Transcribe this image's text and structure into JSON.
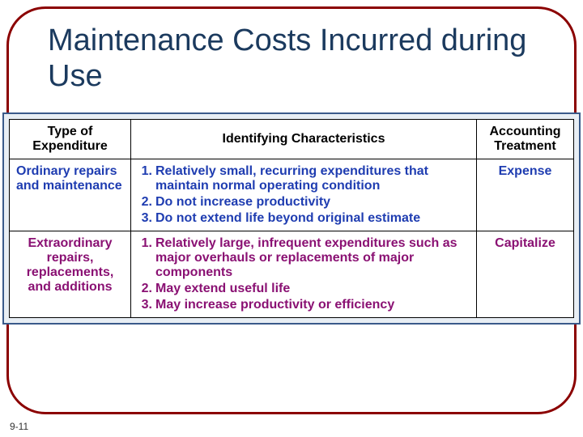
{
  "title": "Maintenance Costs Incurred during Use",
  "page_number": "9-11",
  "colors": {
    "frame_border": "#8b0000",
    "title_text": "#1b3a5e",
    "table_outer_bg": "#e8eef4",
    "table_outer_border": "#3a5a8a",
    "cell_border": "#000000",
    "row_blue": "#1f3db1",
    "row_purple": "#8a1173"
  },
  "table": {
    "headers": {
      "type": "Type of Expenditure",
      "characteristics": "Identifying Characteristics",
      "treatment": "Accounting Treatment"
    },
    "rows": [
      {
        "style": "blue",
        "type": "Ordinary repairs and maintenance",
        "characteristics": [
          {
            "n": "1.",
            "t": "Relatively small, recurring expenditures that maintain normal operating condition"
          },
          {
            "n": "2.",
            "t": "Do not increase productivity"
          },
          {
            "n": "3.",
            "t": "Do not extend life beyond original estimate"
          }
        ],
        "treatment": "Expense"
      },
      {
        "style": "purple",
        "type": "Extraordinary repairs, replacements, and additions",
        "characteristics": [
          {
            "n": "1.",
            "t": "Relatively large, infrequent expenditures such as major overhauls or replacements of major components"
          },
          {
            "n": "2.",
            "t": "May extend useful life"
          },
          {
            "n": "3.",
            "t": "May increase productivity or efficiency"
          }
        ],
        "treatment": "Capitalize"
      }
    ]
  }
}
